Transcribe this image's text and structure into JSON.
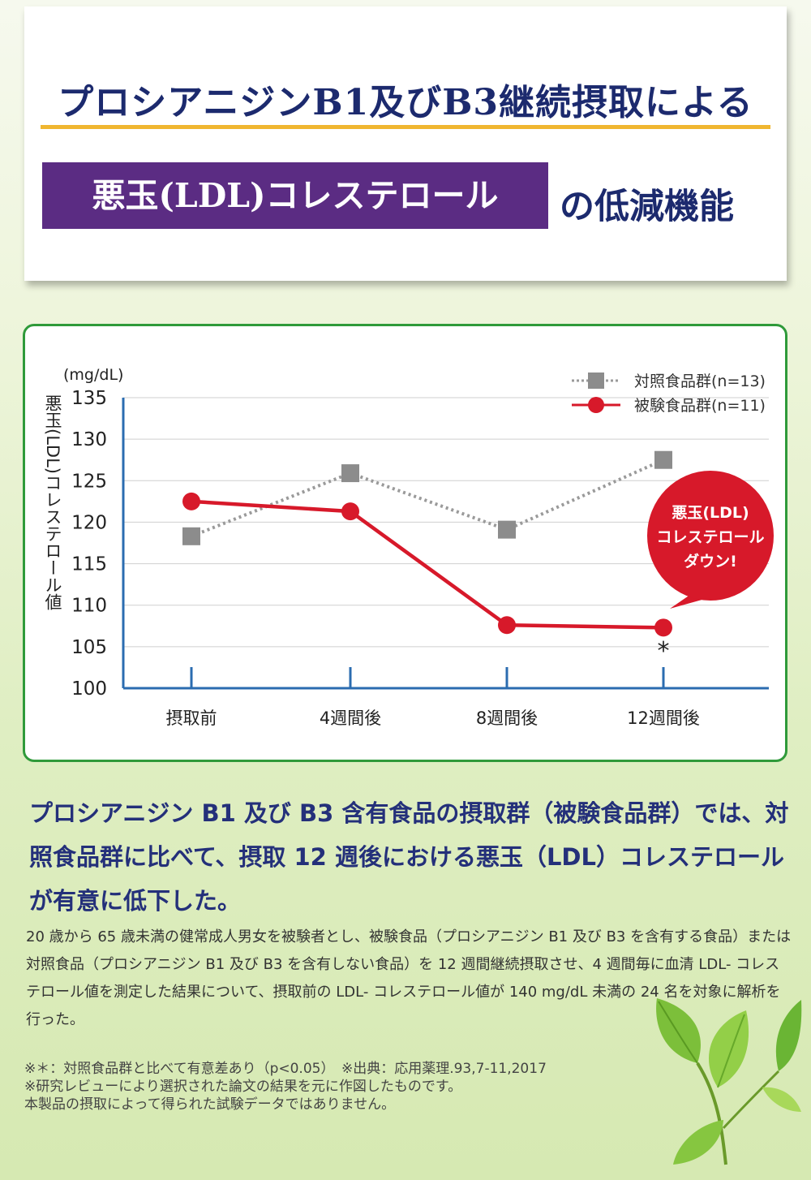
{
  "header": {
    "line1": "プロシアニジンB1及びB3継続摂取による",
    "badge": "悪玉(LDL)コレステロール",
    "suffix": "の低減機能"
  },
  "colors": {
    "title_navy": "#1c2a6e",
    "badge_purple": "#5b2c83",
    "underline_gold": "#f0b630",
    "card_border_green": "#2f9a3a",
    "axis_blue": "#2b6cb0",
    "test_red": "#d7192a",
    "control_gray": "#8c8c8c"
  },
  "chart_data": {
    "type": "line",
    "unit_label": "(mg/dL)",
    "ylabel": "悪玉(LDL)コレステロール値",
    "categories": [
      "摂取前",
      "4週間後",
      "8週間後",
      "12週間後"
    ],
    "ylim": [
      100,
      135
    ],
    "yticks": [
      100,
      105,
      110,
      115,
      120,
      125,
      130,
      135
    ],
    "grid": true,
    "legend_position": "top-right",
    "series": [
      {
        "name": "対照食品群(n=13)",
        "values": [
          118.3,
          125.9,
          119.1,
          127.5
        ],
        "color": "#8c8c8c",
        "style": "dotted",
        "marker": "square"
      },
      {
        "name": "被験食品群(n=11)",
        "values": [
          122.5,
          121.3,
          107.6,
          107.3
        ],
        "color": "#d7192a",
        "style": "solid",
        "marker": "circle"
      }
    ],
    "annotations": {
      "significance_mark": "*",
      "callout_lines": [
        "悪玉(LDL)",
        "コレステロール",
        "ダウン!"
      ]
    }
  },
  "description": {
    "main": "プロシアニジン B1 及び B3 含有食品の摂取群（被験食品群）では、対照食品群に比べて、摂取 12 週後における悪玉（LDL）コレステロールが有意に低下した。",
    "detail": "20 歳から 65 歳未満の健常成人男女を被験者とし、被験食品（プロシアニジン B1 及び B3 を含有する食品）または対照食品（プロシアニジン B1 及び B3 を含有しない食品）を 12 週間継続摂取させ、4 週間毎に血清 LDL- コレステロール値を測定した結果について、摂取前の LDL- コレステロール値が 140 mg/dL 未満の 24 名を対象に解析を行った。"
  },
  "footnotes": {
    "line1": "※＊：対照食品群と比べて有意差あり（p<0.05）　※出典：応用薬理.93,7-11,2017",
    "line2": "※研究レビューにより選択された論文の結果を元に作図したものです。",
    "line3": "本製品の摂取によって得られた試験データではありません。"
  }
}
